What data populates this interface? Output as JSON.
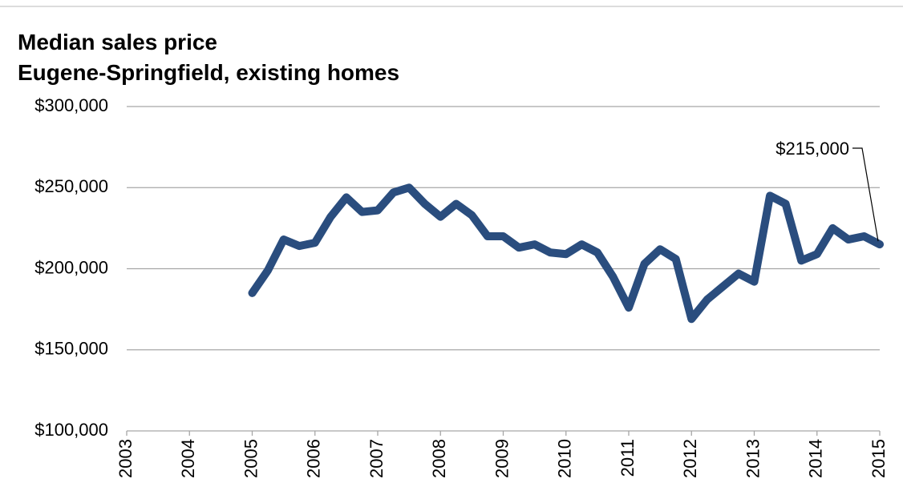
{
  "chart_data": {
    "type": "line",
    "title": [
      "Median sales price",
      "Eugene-Springfield, existing homes"
    ],
    "x": [
      2005,
      2005.25,
      2005.5,
      2005.75,
      2006,
      2006.25,
      2006.5,
      2006.75,
      2007,
      2007.25,
      2007.5,
      2007.75,
      2008,
      2008.25,
      2008.5,
      2008.75,
      2009,
      2009.25,
      2009.5,
      2009.75,
      2010,
      2010.25,
      2010.5,
      2010.75,
      2011,
      2011.25,
      2011.5,
      2011.75,
      2012,
      2012.25,
      2012.5,
      2012.75,
      2013,
      2013.25,
      2013.5,
      2013.75,
      2014,
      2014.25,
      2014.5,
      2014.75,
      2015
    ],
    "series": [
      {
        "name": "Median sales price",
        "color": "#2a4d7e",
        "values": [
          185000,
          199000,
          218000,
          214000,
          216000,
          232000,
          244000,
          235000,
          236000,
          247000,
          250000,
          240000,
          232000,
          240000,
          233000,
          220000,
          220000,
          213000,
          215000,
          210000,
          209000,
          215000,
          210000,
          195000,
          176000,
          203000,
          212000,
          206000,
          169000,
          181000,
          189000,
          197000,
          192000,
          245000,
          240000,
          205000,
          209000,
          225000,
          218000,
          220000,
          215000
        ]
      }
    ],
    "annotation": {
      "text": "$215,000",
      "value": 215000
    },
    "xlim": [
      2003,
      2015
    ],
    "xticks": [
      2003,
      2004,
      2005,
      2006,
      2007,
      2008,
      2009,
      2010,
      2011,
      2012,
      2013,
      2014,
      2015
    ],
    "ylim": [
      100000,
      300000
    ],
    "yticks": [
      {
        "value": 100000,
        "label": "$100,000"
      },
      {
        "value": 150000,
        "label": "$150,000"
      },
      {
        "value": 200000,
        "label": "$200,000"
      },
      {
        "value": 250000,
        "label": "$250,000"
      },
      {
        "value": 300000,
        "label": "$300,000"
      }
    ],
    "grid": true
  }
}
